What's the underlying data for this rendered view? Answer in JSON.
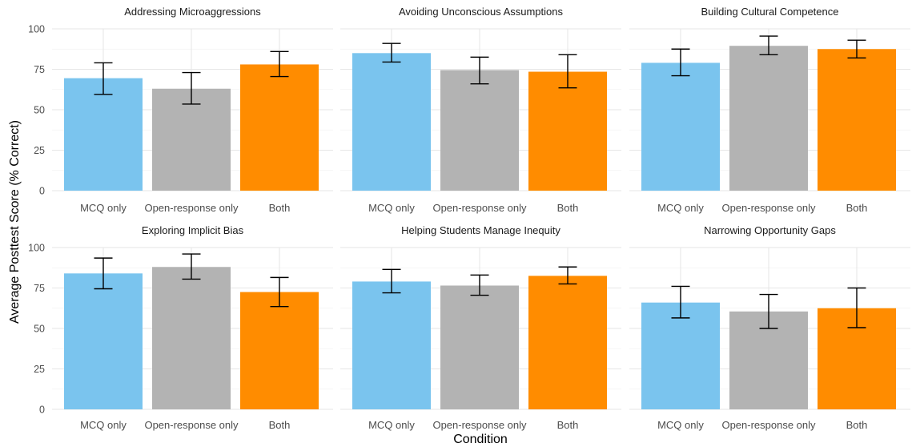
{
  "chart_data": {
    "type": "bar",
    "xlabel": "Condition",
    "ylabel": "Average Posttest Score (% Correct)",
    "ylim": [
      0,
      100
    ],
    "yticks": [
      0,
      25,
      50,
      75,
      100
    ],
    "grid": true,
    "categories": [
      "MCQ only",
      "Open-response only",
      "Both"
    ],
    "colors": [
      "#7ac4ee",
      "#b3b3b3",
      "#ff8c00"
    ],
    "facets": [
      {
        "title": "Addressing Microaggressions",
        "values": [
          69.5,
          63,
          78
        ],
        "lower": [
          59.5,
          53.5,
          70.5
        ],
        "upper": [
          79,
          73,
          86
        ]
      },
      {
        "title": "Avoiding Unconscious Assumptions",
        "values": [
          85,
          74.5,
          73.5
        ],
        "lower": [
          79.5,
          66,
          63.5
        ],
        "upper": [
          91,
          82.5,
          84
        ]
      },
      {
        "title": "Building Cultural Competence",
        "values": [
          79,
          89.5,
          87.5
        ],
        "lower": [
          71,
          84,
          82
        ],
        "upper": [
          87.5,
          95.5,
          93
        ]
      },
      {
        "title": "Exploring Implicit Bias",
        "values": [
          84,
          88,
          72.5
        ],
        "lower": [
          74.5,
          80.5,
          63.5
        ],
        "upper": [
          93.5,
          96,
          81.5
        ]
      },
      {
        "title": "Helping Students Manage Inequity",
        "values": [
          79,
          76.5,
          82.5
        ],
        "lower": [
          72,
          70.5,
          77.5
        ],
        "upper": [
          86.5,
          83,
          88
        ]
      },
      {
        "title": "Narrowing Opportunity Gaps",
        "values": [
          66,
          60.5,
          62.5
        ],
        "lower": [
          56.5,
          50,
          50.5
        ],
        "upper": [
          76,
          71,
          75
        ]
      }
    ]
  }
}
